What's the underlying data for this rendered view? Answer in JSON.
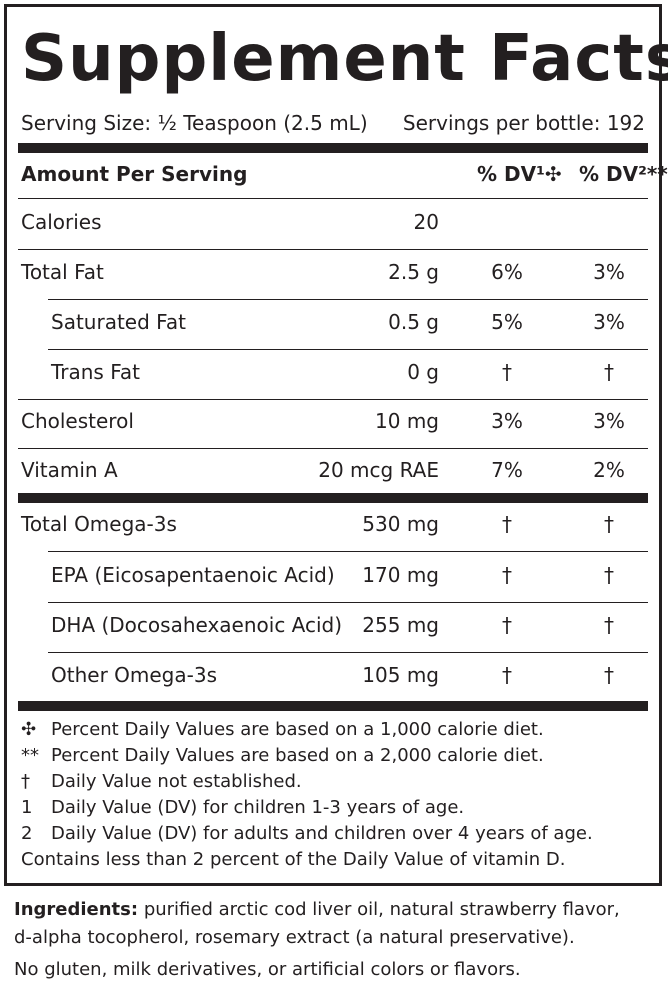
{
  "title": "Supplement Facts",
  "serving_size": "Serving Size: ½ Teaspoon (2.5 mL)",
  "servings_per_bottle": "Servings per bottle: 192",
  "header": {
    "amount": "Amount Per Serving",
    "dv1": "% DV¹✣",
    "dv2": "% DV²**"
  },
  "rows": [
    {
      "name": "Calories",
      "amount": "20",
      "dv1": "",
      "dv2": ""
    },
    {
      "name": "Total Fat",
      "amount": "2.5 g",
      "dv1": "6%",
      "dv2": "3%"
    },
    {
      "name": "Saturated Fat",
      "amount": "0.5 g",
      "dv1": "5%",
      "dv2": "3%"
    },
    {
      "name": "Trans Fat",
      "amount": "0 g",
      "dv1": "†",
      "dv2": "†"
    },
    {
      "name": "Cholesterol",
      "amount": "10 mg",
      "dv1": "3%",
      "dv2": "3%"
    },
    {
      "name": "Vitamin A",
      "amount": "20 mcg RAE",
      "dv1": "7%",
      "dv2": "2%"
    },
    {
      "name": "Total Omega-3s",
      "amount": "530 mg",
      "dv1": "†",
      "dv2": "†"
    },
    {
      "name": "EPA (Eicosapentaenoic Acid)",
      "amount": "170 mg",
      "dv1": "†",
      "dv2": "†"
    },
    {
      "name": "DHA (Docosahexaenoic Acid)",
      "amount": "255 mg",
      "dv1": "†",
      "dv2": "†"
    },
    {
      "name": "Other Omega-3s",
      "amount": "105 mg",
      "dv1": "†",
      "dv2": "†"
    }
  ],
  "footnotes": [
    {
      "mark": "✣",
      "text": "Percent Daily Values are based on a 1,000 calorie diet."
    },
    {
      "mark": "**",
      "text": "Percent Daily Values are based on a 2,000 calorie diet."
    },
    {
      "mark": "†",
      "text": "Daily Value not established."
    },
    {
      "mark": "1",
      "text": "Daily Value (DV) for children 1-3 years of age."
    },
    {
      "mark": "2",
      "text": "Daily Value (DV) for adults and children over 4 years of age."
    }
  ],
  "vitamin_d_note": "Contains less than 2 percent of the Daily Value of vitamin D.",
  "ingredients": {
    "label": "Ingredients:",
    "line1": "purified arctic cod liver oil, natural strawberry flavor,",
    "line2": "d-alpha tocopherol, rosemary extract (a natural preservative)."
  },
  "allergen_note": "No gluten, milk derivatives, or artificial colors or flavors."
}
